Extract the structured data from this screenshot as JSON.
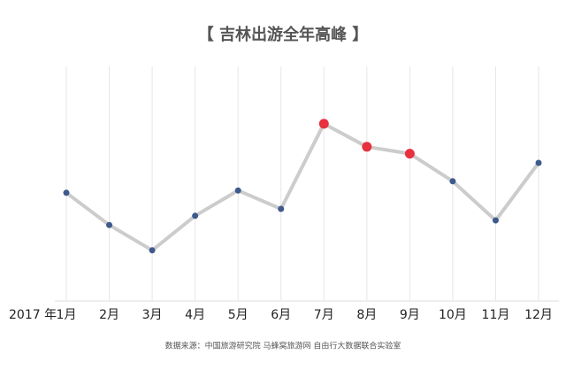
{
  "chart_data": {
    "type": "line",
    "title": "【 吉林出游全年高峰 】",
    "year_label": "2017 年",
    "source": "数据来源：中国旅游研究院 马蜂窝旅游网 自由行大数据联合实验室",
    "categories": [
      "1月",
      "2月",
      "3月",
      "4月",
      "5月",
      "6月",
      "7月",
      "8月",
      "9月",
      "10月",
      "11月",
      "12月"
    ],
    "series": [
      {
        "color": "#cccccc",
        "values": [
          47,
          33,
          22,
          37,
          48,
          40,
          77,
          67,
          64,
          52,
          35,
          60
        ],
        "point_colors": [
          "#3e5a8c",
          "#3e5a8c",
          "#3e5a8c",
          "#3e5a8c",
          "#3e5a8c",
          "#3e5a8c",
          "#e8303f",
          "#e8303f",
          "#e8303f",
          "#3e5a8c",
          "#3e5a8c",
          "#3e5a8c"
        ]
      }
    ],
    "ylim": [
      0,
      100
    ],
    "grid": true
  }
}
